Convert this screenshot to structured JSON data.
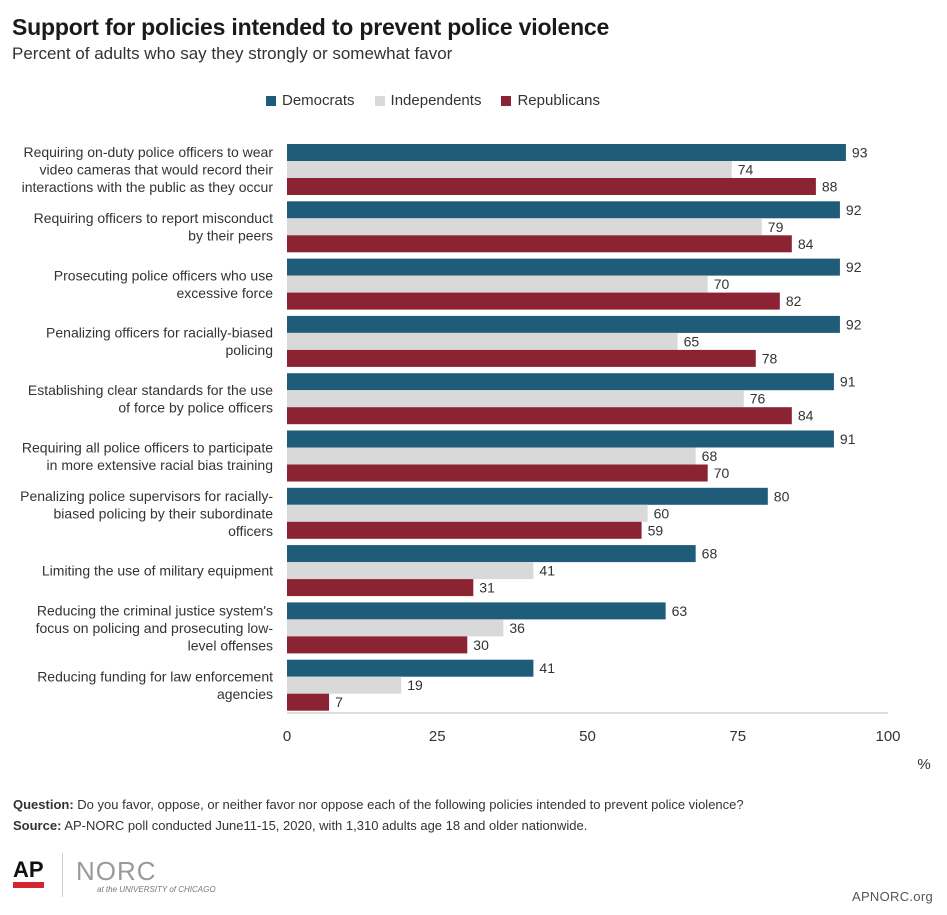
{
  "header": {
    "title": "Support for policies intended to prevent police violence",
    "subtitle": "Percent of adults who say they strongly or somewhat favor"
  },
  "legend": [
    {
      "name": "Democrats",
      "color": "#1f5c7a"
    },
    {
      "name": "Independents",
      "color": "#d9d9d9"
    },
    {
      "name": "Republicans",
      "color": "#8b2332"
    }
  ],
  "chart_data": {
    "type": "bar",
    "orientation": "horizontal",
    "categories": [
      "Requiring on-duty police officers to wear video cameras that would record their interactions with the public as they occur",
      "Requiring officers to report misconduct by their peers",
      "Prosecuting police officers who use excessive force",
      "Penalizing officers for racially-biased policing",
      "Establishing clear standards for the use of force by police officers",
      "Requiring all police officers to participate in more extensive racial bias training",
      "Penalizing police supervisors for racially-biased policing by their subordinate officers",
      "Limiting the use of military equipment",
      "Reducing the criminal justice system's focus on policing and prosecuting low-level offenses",
      "Reducing funding for law enforcement agencies"
    ],
    "category_lines": [
      [
        "Requiring on-duty police officers to wear",
        "video cameras that would record their",
        "interactions with the public as they occur"
      ],
      [
        "Requiring officers to report misconduct",
        "by their peers"
      ],
      [
        "Prosecuting police officers who use",
        "excessive force"
      ],
      [
        "Penalizing officers for racially-biased",
        "policing"
      ],
      [
        "Establishing clear standards for the use",
        "of force by police officers"
      ],
      [
        "Requiring all police officers to participate",
        "in more extensive racial bias training"
      ],
      [
        "Penalizing police supervisors for racially-",
        "biased policing by their subordinate",
        "officers"
      ],
      [
        "Limiting the use of military equipment"
      ],
      [
        "Reducing the criminal justice system's",
        "focus on policing and prosecuting low-",
        "level offenses"
      ],
      [
        "Reducing funding for law enforcement",
        "agencies"
      ]
    ],
    "series": [
      {
        "name": "Democrats",
        "color": "#1f5c7a",
        "values": [
          93,
          92,
          92,
          92,
          91,
          91,
          80,
          68,
          63,
          41
        ]
      },
      {
        "name": "Independents",
        "color": "#d9d9d9",
        "values": [
          74,
          79,
          70,
          65,
          76,
          68,
          60,
          41,
          36,
          19
        ]
      },
      {
        "name": "Republicans",
        "color": "#8b2332",
        "values": [
          88,
          84,
          82,
          78,
          84,
          70,
          59,
          31,
          30,
          7
        ]
      }
    ],
    "xlim": [
      0,
      100
    ],
    "xticks": [
      0,
      25,
      50,
      75,
      100
    ],
    "xunit": "%",
    "grid": false
  },
  "footer": {
    "question_label": "Question:",
    "question_text": "Do you favor, oppose, or neither favor nor oppose each of the following policies  intended to prevent police violence?",
    "source_label": "Source:",
    "source_text": "AP-NORC poll conducted June11-15, 2020, with 1,310 adults age 18 and older nationwide.",
    "logo_ap": "AP",
    "logo_norc": "NORC",
    "logo_norc_sub": "at the UNIVERSITY of CHICAGO",
    "site": "APNORC.org"
  }
}
